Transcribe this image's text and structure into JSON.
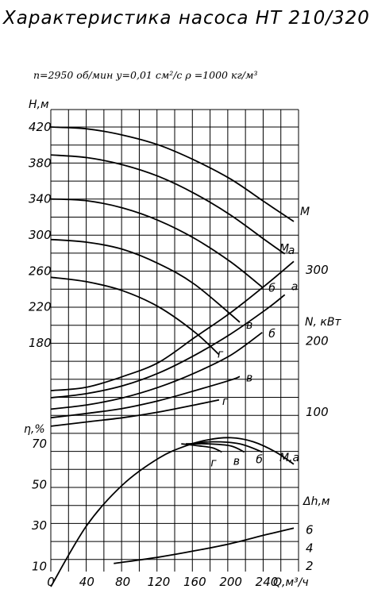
{
  "title": "Характеристика насоса НТ 210/320",
  "params": "n=2950 об/мин   у=0,01 см²/с    ρ =1000 кг/м³",
  "chart_data": {
    "type": "line",
    "title": "Характеристика насоса НТ 210/320",
    "subtitle": "n=2950 об/мин   у=0,01 см²/с    ρ =1000 кг/м³",
    "grid": true,
    "x_axis": {
      "label": "Q,м³/ч",
      "range": [
        0,
        280
      ],
      "ticks": [
        "0",
        "40",
        "80",
        "120",
        "160",
        "200",
        "240"
      ]
    },
    "axes": {
      "H": {
        "label": "Н,м",
        "range": [
          140,
          440
        ],
        "ticks": [
          "420",
          "380",
          "340",
          "300",
          "260",
          "220",
          "180"
        ]
      },
      "N": {
        "label": "N, кВт",
        "range": [
          50,
          400
        ],
        "ticks": [
          "300",
          "200",
          "100"
        ]
      },
      "eta": {
        "label": "η,%",
        "range": [
          0,
          80
        ],
        "ticks": [
          "70",
          "50",
          "30",
          "10"
        ]
      },
      "dh": {
        "label": "Δh,м",
        "range": [
          0,
          10
        ],
        "ticks": [
          "6",
          "4",
          "2"
        ]
      }
    },
    "series": [
      {
        "name": "М",
        "axis": "H",
        "x": [
          0,
          40,
          80,
          120,
          160,
          200,
          240,
          270
        ],
        "values": [
          420,
          418,
          411,
          400,
          383,
          362,
          335,
          315
        ]
      },
      {
        "name": "а",
        "axis": "H",
        "x": [
          0,
          40,
          80,
          120,
          160,
          200,
          240,
          260
        ],
        "values": [
          389,
          386,
          378,
          365,
          346,
          322,
          293,
          279
        ]
      },
      {
        "name": "б",
        "axis": "H",
        "x": [
          0,
          40,
          80,
          120,
          160,
          200,
          235
        ],
        "values": [
          340,
          338,
          330,
          316,
          296,
          270,
          242
        ]
      },
      {
        "name": "в",
        "axis": "H",
        "x": [
          0,
          40,
          80,
          120,
          160,
          210
        ],
        "values": [
          295,
          292,
          284,
          268,
          245,
          203
        ]
      },
      {
        "name": "г",
        "axis": "H",
        "x": [
          0,
          40,
          80,
          120,
          160,
          187
        ],
        "values": [
          253,
          248,
          238,
          220,
          192,
          167
        ]
      },
      {
        "name": "М",
        "axis": "N",
        "x": [
          0,
          40,
          80,
          120,
          160,
          200,
          240,
          270
        ],
        "values": [
          130,
          135,
          150,
          170,
          205,
          240,
          280,
          312
        ]
      },
      {
        "name": "а",
        "axis": "N",
        "x": [
          0,
          40,
          80,
          120,
          160,
          200,
          240,
          260
        ],
        "values": [
          120,
          126,
          137,
          155,
          180,
          210,
          245,
          265
        ]
      },
      {
        "name": "б",
        "axis": "N",
        "x": [
          0,
          40,
          80,
          120,
          160,
          200,
          235
        ],
        "values": [
          104,
          110,
          120,
          135,
          155,
          180,
          212
        ]
      },
      {
        "name": "в",
        "axis": "N",
        "x": [
          0,
          40,
          80,
          120,
          160,
          200,
          210
        ],
        "values": [
          92,
          98,
          105,
          116,
          130,
          145,
          150
        ]
      },
      {
        "name": "г",
        "axis": "N",
        "x": [
          0,
          40,
          80,
          120,
          160,
          187
        ],
        "values": [
          80,
          86,
          92,
          100,
          110,
          117
        ]
      },
      {
        "name": "М,а",
        "axis": "eta",
        "x": [
          0,
          40,
          80,
          120,
          150,
          175,
          200,
          225,
          250,
          270
        ],
        "values": [
          0,
          30,
          50,
          63,
          69,
          72,
          73,
          71,
          66,
          60
        ]
      },
      {
        "name": "б",
        "axis": "eta",
        "x": [
          155,
          180,
          210,
          235
        ],
        "values": [
          70,
          71,
          70,
          66
        ]
      },
      {
        "name": "в",
        "axis": "eta",
        "x": [
          150,
          175,
          200,
          215
        ],
        "values": [
          70,
          70,
          69,
          66
        ]
      },
      {
        "name": "г",
        "axis": "eta",
        "x": [
          145,
          165,
          180,
          190
        ],
        "values": [
          70,
          69,
          68,
          66
        ]
      },
      {
        "name": "",
        "axis": "dh",
        "x": [
          70,
          120,
          160,
          200,
          240,
          270
        ],
        "values": [
          2.3,
          3.0,
          3.7,
          4.5,
          5.5,
          6.2
        ]
      }
    ]
  }
}
